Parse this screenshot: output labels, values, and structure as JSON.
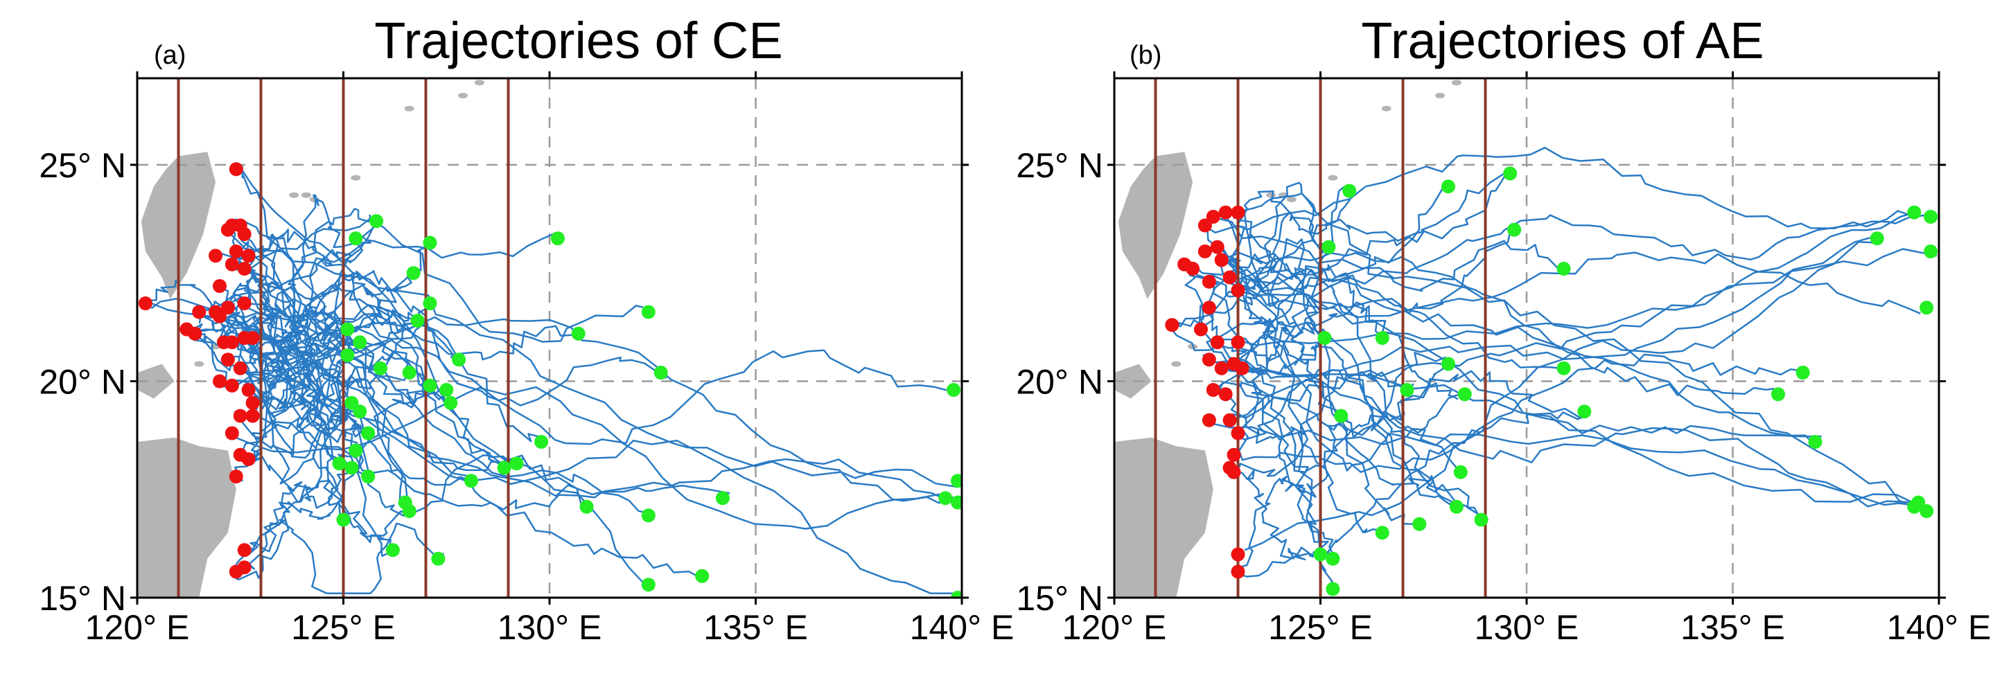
{
  "panels": [
    {
      "id": "a",
      "label": "(a)",
      "title": "Trajectories of CE",
      "start_points": [
        [
          120.2,
          21.8
        ],
        [
          121.2,
          21.2
        ],
        [
          121.4,
          21.1
        ],
        [
          121.5,
          21.6
        ],
        [
          121.9,
          21.6
        ],
        [
          122.0,
          21.5
        ],
        [
          122.2,
          21.7
        ],
        [
          121.9,
          22.9
        ],
        [
          122.2,
          23.5
        ],
        [
          122.3,
          23.6
        ],
        [
          122.5,
          23.6
        ],
        [
          122.6,
          23.4
        ],
        [
          122.4,
          23.0
        ],
        [
          122.7,
          22.9
        ],
        [
          122.3,
          22.7
        ],
        [
          122.6,
          22.6
        ],
        [
          122.0,
          22.2
        ],
        [
          122.6,
          21.8
        ],
        [
          122.4,
          24.9
        ],
        [
          122.1,
          20.9
        ],
        [
          122.3,
          20.9
        ],
        [
          122.6,
          21.0
        ],
        [
          122.8,
          21.0
        ],
        [
          122.2,
          20.5
        ],
        [
          122.5,
          20.3
        ],
        [
          122.0,
          20.0
        ],
        [
          122.3,
          19.9
        ],
        [
          122.7,
          19.8
        ],
        [
          122.8,
          19.5
        ],
        [
          122.5,
          19.2
        ],
        [
          122.8,
          19.2
        ],
        [
          122.3,
          18.8
        ],
        [
          122.5,
          18.3
        ],
        [
          122.7,
          18.2
        ],
        [
          122.4,
          17.8
        ],
        [
          122.6,
          16.1
        ],
        [
          122.4,
          15.6
        ],
        [
          122.6,
          15.7
        ]
      ],
      "end_points": [
        [
          125.3,
          23.3
        ],
        [
          125.8,
          23.7
        ],
        [
          127.1,
          23.2
        ],
        [
          130.2,
          23.3
        ],
        [
          126.7,
          22.5
        ],
        [
          127.1,
          21.8
        ],
        [
          126.8,
          21.4
        ],
        [
          132.4,
          21.6
        ],
        [
          130.7,
          21.1
        ],
        [
          125.1,
          21.2
        ],
        [
          125.4,
          20.9
        ],
        [
          125.1,
          20.6
        ],
        [
          125.9,
          20.3
        ],
        [
          126.6,
          20.2
        ],
        [
          127.8,
          20.5
        ],
        [
          132.7,
          20.2
        ],
        [
          127.1,
          19.9
        ],
        [
          127.5,
          19.8
        ],
        [
          127.6,
          19.5
        ],
        [
          125.2,
          19.5
        ],
        [
          125.4,
          19.3
        ],
        [
          125.6,
          18.8
        ],
        [
          125.3,
          18.4
        ],
        [
          125.2,
          18.0
        ],
        [
          125.6,
          17.8
        ],
        [
          124.9,
          18.1
        ],
        [
          128.9,
          18.0
        ],
        [
          129.2,
          18.1
        ],
        [
          129.8,
          18.6
        ],
        [
          128.1,
          17.7
        ],
        [
          126.5,
          17.2
        ],
        [
          126.6,
          17.0
        ],
        [
          130.9,
          17.1
        ],
        [
          134.2,
          17.3
        ],
        [
          132.4,
          16.9
        ],
        [
          125.0,
          16.8
        ],
        [
          126.2,
          16.1
        ],
        [
          127.3,
          15.9
        ],
        [
          133.7,
          15.5
        ],
        [
          132.4,
          15.3
        ],
        [
          139.6,
          17.3
        ],
        [
          139.9,
          17.2
        ],
        [
          139.9,
          17.7
        ],
        [
          139.8,
          19.8
        ],
        [
          139.9,
          15.0
        ]
      ]
    },
    {
      "id": "b",
      "label": "(b)",
      "title": "Trajectories of AE",
      "start_points": [
        [
          121.4,
          21.3
        ],
        [
          121.7,
          22.7
        ],
        [
          121.9,
          22.6
        ],
        [
          122.2,
          23.6
        ],
        [
          122.4,
          23.8
        ],
        [
          122.7,
          23.9
        ],
        [
          123.0,
          23.9
        ],
        [
          122.2,
          23.0
        ],
        [
          122.5,
          23.1
        ],
        [
          122.6,
          22.8
        ],
        [
          122.8,
          22.4
        ],
        [
          122.3,
          22.3
        ],
        [
          123.0,
          22.1
        ],
        [
          122.3,
          21.7
        ],
        [
          122.1,
          21.2
        ],
        [
          122.5,
          20.9
        ],
        [
          123.0,
          20.9
        ],
        [
          122.3,
          20.5
        ],
        [
          122.6,
          20.3
        ],
        [
          122.9,
          20.4
        ],
        [
          123.1,
          20.3
        ],
        [
          122.4,
          19.8
        ],
        [
          122.7,
          19.7
        ],
        [
          122.3,
          19.1
        ],
        [
          122.8,
          19.1
        ],
        [
          123.0,
          18.8
        ],
        [
          122.9,
          18.3
        ],
        [
          122.9,
          17.9
        ],
        [
          122.8,
          18.0
        ],
        [
          123.0,
          16.0
        ],
        [
          123.0,
          15.6
        ]
      ],
      "end_points": [
        [
          125.2,
          23.1
        ],
        [
          125.7,
          24.4
        ],
        [
          128.1,
          24.5
        ],
        [
          129.6,
          24.8
        ],
        [
          129.7,
          23.5
        ],
        [
          130.9,
          22.6
        ],
        [
          139.4,
          23.9
        ],
        [
          139.8,
          23.8
        ],
        [
          138.5,
          23.3
        ],
        [
          139.8,
          23.0
        ],
        [
          139.7,
          21.7
        ],
        [
          125.1,
          21.0
        ],
        [
          126.5,
          21.0
        ],
        [
          128.1,
          20.4
        ],
        [
          127.1,
          19.8
        ],
        [
          125.5,
          19.2
        ],
        [
          128.5,
          19.7
        ],
        [
          130.9,
          20.3
        ],
        [
          131.4,
          19.3
        ],
        [
          136.1,
          19.7
        ],
        [
          136.7,
          20.2
        ],
        [
          137.0,
          18.6
        ],
        [
          128.4,
          17.9
        ],
        [
          128.3,
          17.1
        ],
        [
          127.4,
          16.7
        ],
        [
          126.5,
          16.5
        ],
        [
          128.9,
          16.8
        ],
        [
          125.0,
          16.0
        ],
        [
          125.3,
          15.9
        ],
        [
          125.3,
          15.2
        ],
        [
          139.4,
          17.1
        ],
        [
          139.5,
          17.2
        ],
        [
          139.7,
          17.0
        ]
      ]
    }
  ],
  "axes": {
    "x_ticks": [
      {
        "value": 120,
        "label": "120° E"
      },
      {
        "value": 125,
        "label": "125° E"
      },
      {
        "value": 130,
        "label": "130° E"
      },
      {
        "value": 135,
        "label": "135° E"
      },
      {
        "value": 140,
        "label": "140° E"
      }
    ],
    "y_ticks": [
      {
        "value": 15,
        "label": "15° N"
      },
      {
        "value": 20,
        "label": "20° N"
      },
      {
        "value": 25,
        "label": "25° N"
      }
    ],
    "lon_range": [
      120,
      140
    ],
    "lat_range": [
      15,
      27
    ],
    "box_lons": [
      121,
      123,
      125,
      127,
      129
    ],
    "box_lat_range": [
      15,
      27
    ],
    "grid_lons": [
      125,
      130,
      135
    ],
    "grid_lats": [
      20,
      25
    ]
  },
  "colors": {
    "start_marker": "#ee1111",
    "end_marker": "#22ee22",
    "track": "#2a7bc4",
    "region_box": "#8b3a2a",
    "land": "#b4b4b4"
  }
}
